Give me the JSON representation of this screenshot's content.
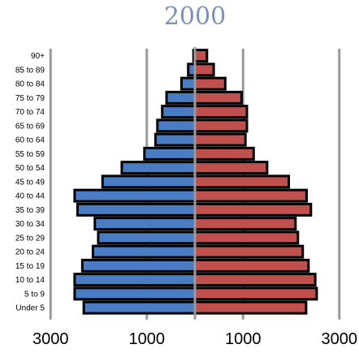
{
  "chart_data": {
    "type": "bar",
    "title": "2000",
    "orientation": "horizontal-butterfly",
    "categories": [
      "90+",
      "85 to 89",
      "80 to 84",
      "75 to 79",
      "70 to 74",
      "65 to 69",
      "60 to 64",
      "55 to 59",
      "50 to 54",
      "45 to 49",
      "40 to 44",
      "35 to 39",
      "30 to 34",
      "25 to 29",
      "20 to 24",
      "15 to 19",
      "10 to 14",
      "5  to 9",
      "Under 5"
    ],
    "series": [
      {
        "side": "left",
        "color": "#4a7cc4",
        "values": [
          30,
          140,
          280,
          590,
          680,
          780,
          820,
          1050,
          1520,
          1920,
          2500,
          2440,
          2080,
          2010,
          2120,
          2340,
          2500,
          2500,
          2310
        ]
      },
      {
        "side": "right",
        "color": "#c0504d",
        "values": [
          250,
          390,
          630,
          970,
          1080,
          1080,
          1050,
          1220,
          1500,
          1950,
          2320,
          2410,
          2090,
          2140,
          2240,
          2360,
          2500,
          2530,
          2310
        ]
      }
    ],
    "x_tick_labels": [
      "3000",
      "1000",
      "1000",
      "3000"
    ],
    "x_ticks": [
      -3000,
      -1000,
      1000,
      3000
    ],
    "xlim": [
      -3000,
      3000
    ],
    "grid": true
  }
}
